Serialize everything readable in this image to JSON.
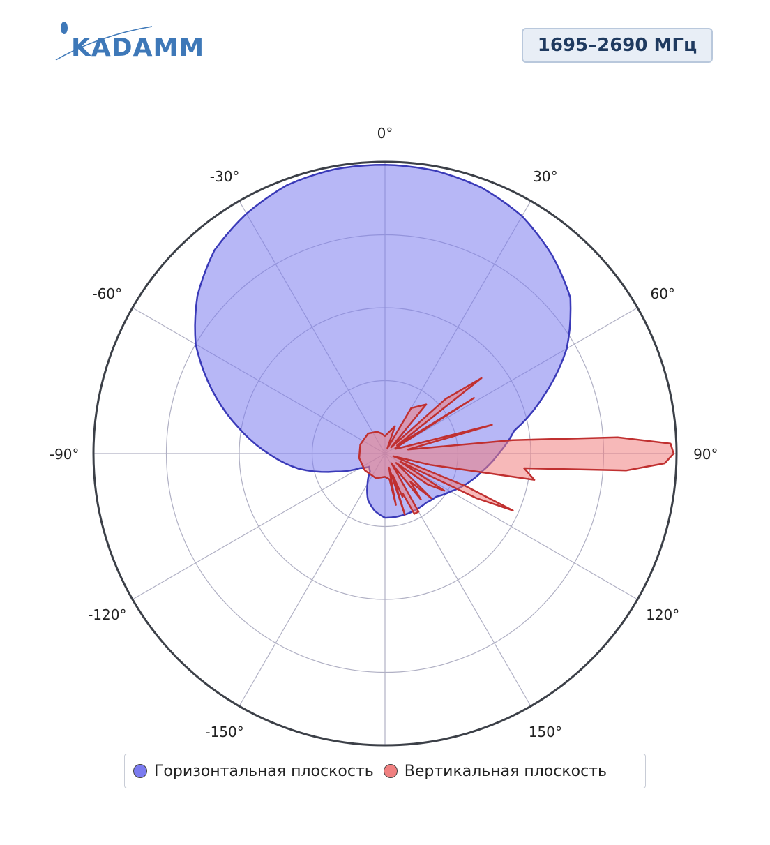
{
  "logo": {
    "text": "KADAMM",
    "color": "#3e78b8"
  },
  "badge": {
    "text": "1695–2690 МГц"
  },
  "chart_data": {
    "type": "polar-area",
    "angular_ticks": [
      "0°",
      "30°",
      "60°",
      "90°",
      "120°",
      "150°",
      "-150°",
      "-120°",
      "-90°",
      "-60°",
      "-30°"
    ],
    "angular_tick_values": [
      0,
      30,
      60,
      90,
      120,
      150,
      210,
      240,
      270,
      300,
      330
    ],
    "radial_grid": [
      0.25,
      0.5,
      0.75
    ],
    "rmax": 1.0,
    "series": [
      {
        "name": "Горизонтальная плоскость",
        "color": "#7b7bef",
        "line_color": "#3a3ab8",
        "theta": [
          0,
          10,
          20,
          30,
          40,
          50,
          60,
          70,
          80,
          90,
          100,
          110,
          120,
          130,
          140,
          150,
          160,
          170,
          180,
          190,
          200,
          210,
          220,
          230,
          240,
          250,
          260,
          270,
          280,
          290,
          300,
          310,
          320,
          330,
          340,
          350
        ],
        "r": [
          0.99,
          0.985,
          0.97,
          0.94,
          0.89,
          0.83,
          0.72,
          0.58,
          0.45,
          0.39,
          0.34,
          0.3,
          0.26,
          0.23,
          0.22,
          0.22,
          0.22,
          0.22,
          0.22,
          0.2,
          0.17,
          0.12,
          0.08,
          0.07,
          0.1,
          0.18,
          0.3,
          0.4,
          0.51,
          0.63,
          0.75,
          0.84,
          0.91,
          0.95,
          0.98,
          0.99
        ]
      },
      {
        "name": "Вертикальная плоскость",
        "color": "#f08080",
        "line_color": "#c03030",
        "theta": [
          0,
          20,
          25,
          30,
          40,
          45,
          48,
          52,
          56,
          58,
          62,
          66,
          70,
          75,
          80,
          84,
          86,
          88,
          90,
          92,
          94,
          96,
          100,
          104,
          108,
          112,
          114,
          116,
          118,
          122,
          126,
          130,
          134,
          138,
          142,
          146,
          150,
          154,
          156,
          158,
          160,
          162,
          164,
          166,
          168,
          170,
          180,
          200,
          230,
          260,
          290,
          320,
          340,
          350
        ],
        "r": [
          0.06,
          0.1,
          0.02,
          0.18,
          0.22,
          0.03,
          0.28,
          0.42,
          0.05,
          0.36,
          0.04,
          0.04,
          0.06,
          0.38,
          0.08,
          0.44,
          0.8,
          0.98,
          0.99,
          0.96,
          0.83,
          0.48,
          0.52,
          0.16,
          0.03,
          0.3,
          0.48,
          0.35,
          0.06,
          0.24,
          0.18,
          0.05,
          0.22,
          0.13,
          0.2,
          0.04,
          0.23,
          0.23,
          0.15,
          0.16,
          0.08,
          0.22,
          0.05,
          0.07,
          0.18,
          0.09,
          0.08,
          0.09,
          0.09,
          0.09,
          0.09,
          0.09,
          0.08,
          0.07
        ]
      }
    ],
    "legend": {
      "placement": "bottom",
      "border": true
    }
  },
  "legend": {
    "items": [
      {
        "label": "Горизонтальная плоскость",
        "color": "#7b7bef"
      },
      {
        "label": "Вертикальная плоскость",
        "color": "#f08080"
      }
    ]
  }
}
